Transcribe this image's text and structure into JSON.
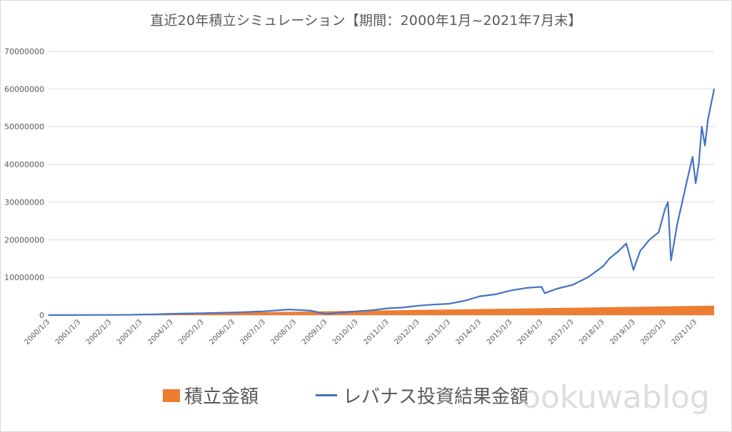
{
  "chart_data": {
    "type": "line",
    "title": "直近20年積立シミュレーション【期間：2000年1月~2021年7月末】",
    "xlabel": "",
    "ylabel": "",
    "ylim": [
      0,
      70000000
    ],
    "y_ticks": [
      "0",
      "10000000",
      "20000000",
      "30000000",
      "40000000",
      "50000000",
      "60000000",
      "70000000"
    ],
    "x_tick_labels": [
      "2000/1/3",
      "2001/1/3",
      "2002/1/3",
      "2003/1/3",
      "2004/1/3",
      "2005/1/3",
      "2006/1/3",
      "2007/1/3",
      "2008/1/3",
      "2009/1/3",
      "2010/1/3",
      "2011/1/3",
      "2012/1/3",
      "2013/1/3",
      "2014/1/3",
      "2015/1/3",
      "2016/1/3",
      "2017/1/3",
      "2018/1/3",
      "2019/1/3",
      "2020/1/3",
      "2021/1/3"
    ],
    "xlim": [
      2000.0,
      2021.6
    ],
    "grid": true,
    "legend_position": "bottom",
    "series": [
      {
        "name": "積立金額",
        "kind": "area",
        "color": "#ED7D31",
        "x": [
          2000.0,
          2003.0,
          2021.6
        ],
        "y": [
          0,
          300000,
          2500000
        ]
      },
      {
        "name": "レバナス投資結果金額",
        "kind": "line",
        "color": "#4472C4",
        "x": [
          2000.0,
          2002.5,
          2003.5,
          2004.0,
          2005.0,
          2006.0,
          2007.0,
          2007.8,
          2008.5,
          2009.0,
          2009.5,
          2010.0,
          2010.5,
          2011.0,
          2011.5,
          2012.0,
          2012.5,
          2013.0,
          2013.5,
          2014.0,
          2014.5,
          2015.0,
          2015.5,
          2016.0,
          2016.1,
          2016.5,
          2017.0,
          2017.5,
          2018.0,
          2018.2,
          2018.5,
          2018.75,
          2018.98,
          2019.2,
          2019.5,
          2019.8,
          2020.0,
          2020.1,
          2020.2,
          2020.4,
          2020.7,
          2020.9,
          2021.0,
          2021.1,
          2021.2,
          2021.3,
          2021.4,
          2021.5,
          2021.6
        ],
        "y": [
          0,
          50000,
          200000,
          350000,
          500000,
          700000,
          1000000,
          1500000,
          1200000,
          300000,
          700000,
          1000000,
          1300000,
          1800000,
          2000000,
          2500000,
          2800000,
          3000000,
          3800000,
          5000000,
          5500000,
          6500000,
          7200000,
          7500000,
          5800000,
          7000000,
          8000000,
          10000000,
          13000000,
          15000000,
          17000000,
          19000000,
          12000000,
          17000000,
          20000000,
          22000000,
          28000000,
          30000000,
          14500000,
          24000000,
          35000000,
          42000000,
          35000000,
          40000000,
          50000000,
          45000000,
          52000000,
          56000000,
          60000000
        ]
      }
    ]
  },
  "watermark": "ookuwablog"
}
